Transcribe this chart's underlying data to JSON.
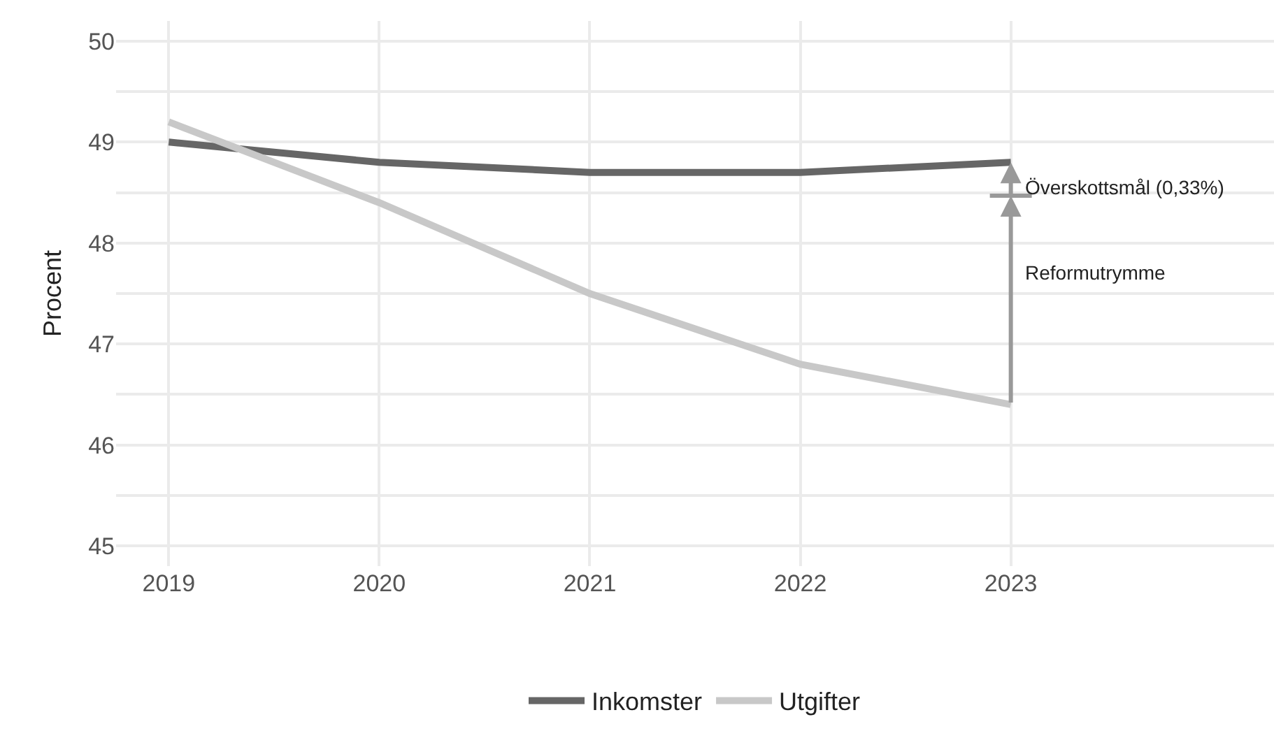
{
  "chart_data": {
    "type": "line",
    "ylabel": "Procent",
    "x": [
      2019,
      2020,
      2021,
      2022,
      2023
    ],
    "series": [
      {
        "name": "Inkomster",
        "color": "#666666",
        "values": [
          49.0,
          48.8,
          48.7,
          48.7,
          48.8
        ]
      },
      {
        "name": "Utgifter",
        "color": "#c8c8c8",
        "values": [
          49.2,
          48.4,
          47.5,
          46.8,
          46.4
        ]
      }
    ],
    "xlim": [
      2018.75,
      2024.25
    ],
    "xticks": [
      2019,
      2020,
      2021,
      2022,
      2023
    ],
    "ylim": [
      44.8,
      50.2
    ],
    "yticks": [
      45,
      {
        "value": 45.5,
        "label": null
      },
      46,
      {
        "value": 46.5,
        "label": null
      },
      47,
      {
        "value": 47.5,
        "label": null
      },
      48,
      {
        "value": 48.5,
        "label": null
      },
      49,
      {
        "value": 49.5,
        "label": null
      },
      50
    ],
    "ref_lines": [
      {
        "axis": "y",
        "value": 48.47,
        "label": "Överskottsmål (0,33%)",
        "color": "#999999"
      }
    ],
    "annotations": [
      "Reformutrymme"
    ],
    "grid": true,
    "legend": "bottom",
    "marker": "none"
  }
}
